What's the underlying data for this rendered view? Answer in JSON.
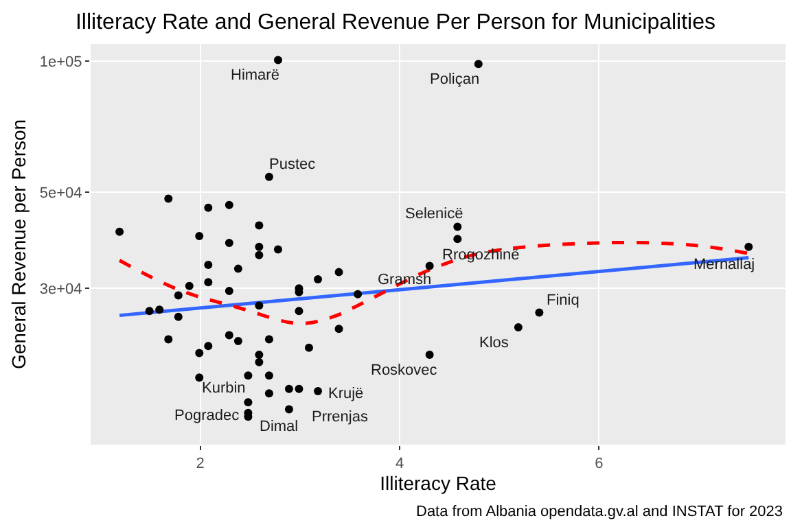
{
  "chart_data": {
    "type": "scatter",
    "title": "Illiteracy Rate and General Revenue Per Person for Municipalities",
    "xlabel": "Illiteracy Rate",
    "ylabel": "General Revenue per Person",
    "log": "y",
    "grid": true,
    "xlim": [
      0.9,
      7.87
    ],
    "xticks": [
      2,
      4,
      6
    ],
    "ylim": [
      13100,
      109700
    ],
    "yticks": [
      {
        "value": 30000,
        "label": "3e+04"
      },
      {
        "value": 50000,
        "label": "5e+04"
      },
      {
        "value": 100000,
        "label": "1e+05"
      }
    ],
    "series": [
      {
        "marker": "circle",
        "color": "#000000",
        "x": [
          2.78,
          2.69,
          1.68,
          2.08,
          2.29,
          1.19,
          2.59,
          1.99,
          2.29,
          2.59,
          2.59,
          2.78,
          2.08,
          2.38,
          1.89,
          2.08,
          1.78,
          2.29,
          2.99,
          2.99,
          3.18,
          2.59,
          2.99,
          1.49,
          1.59,
          1.78,
          1.68,
          2.29,
          2.38,
          2.69,
          2.08,
          1.99,
          2.59,
          2.59,
          3.09,
          1.99,
          2.48,
          2.69,
          2.48,
          2.69,
          2.89,
          2.99,
          3.18,
          2.48,
          2.48,
          2.89,
          4.79,
          4.58,
          4.58,
          4.3,
          7.5,
          3.39,
          3.58,
          3.39,
          4.3,
          5.19,
          5.4
        ],
        "values": [
          100700,
          54200,
          48300,
          46000,
          46700,
          40500,
          41900,
          39600,
          38200,
          37400,
          35800,
          36900,
          34000,
          33300,
          30400,
          31000,
          28900,
          29600,
          30000,
          29400,
          31500,
          27400,
          26600,
          26600,
          26800,
          25800,
          22900,
          23400,
          22700,
          22900,
          22100,
          21300,
          21100,
          20300,
          21900,
          18700,
          18900,
          18900,
          16400,
          17200,
          17600,
          17600,
          17400,
          15500,
          15200,
          15800,
          98600,
          41600,
          39000,
          33800,
          37400,
          32700,
          29100,
          24200,
          21100,
          24400,
          26400
        ]
      },
      {
        "type": "line",
        "line_style": "solid",
        "color": "#3366ff",
        "x": [
          1.19,
          7.5
        ],
        "values": [
          26000,
          35300
        ]
      },
      {
        "type": "line",
        "line_style": "dashed",
        "color": "#ff0000",
        "x": [
          1.19,
          1.78,
          2.38,
          2.99,
          3.33,
          3.58,
          4.3,
          4.85,
          6.0,
          6.96,
          7.5
        ],
        "values": [
          34800,
          29800,
          27100,
          24900,
          25800,
          27400,
          33100,
          36300,
          38200,
          37700,
          36100
        ]
      }
    ],
    "annotations": [
      {
        "text": "Himarë",
        "x": 2.78,
        "y": 100700
      },
      {
        "text": "Pustec",
        "x": 2.69,
        "y": 54200
      },
      {
        "text": "Poliçan",
        "x": 4.79,
        "y": 98600
      },
      {
        "text": "Selenicë",
        "x": 4.58,
        "y": 41600
      },
      {
        "text": "Rrogozhinë",
        "x": 4.58,
        "y": 39000
      },
      {
        "text": "Mernallaj",
        "x": 7.5,
        "y": 37400
      },
      {
        "text": "Gramsh",
        "x": 4.3,
        "y": 33800
      },
      {
        "text": "Finiq",
        "x": 5.4,
        "y": 26400
      },
      {
        "text": "Klos",
        "x": 5.19,
        "y": 24400
      },
      {
        "text": "Roskovec",
        "x": 4.3,
        "y": 21100
      },
      {
        "text": "Krujë",
        "x": 3.18,
        "y": 17400
      },
      {
        "text": "Prrenjas",
        "x": 2.89,
        "y": 15800
      },
      {
        "text": "Kurbin",
        "x": 2.48,
        "y": 16400
      },
      {
        "text": "Pogradec",
        "x": 2.48,
        "y": 15500
      },
      {
        "text": "Dimal",
        "x": 2.48,
        "y": 15200
      },
      "Data from Albania opendata.gv.al and INSTAT for 2023"
    ]
  }
}
